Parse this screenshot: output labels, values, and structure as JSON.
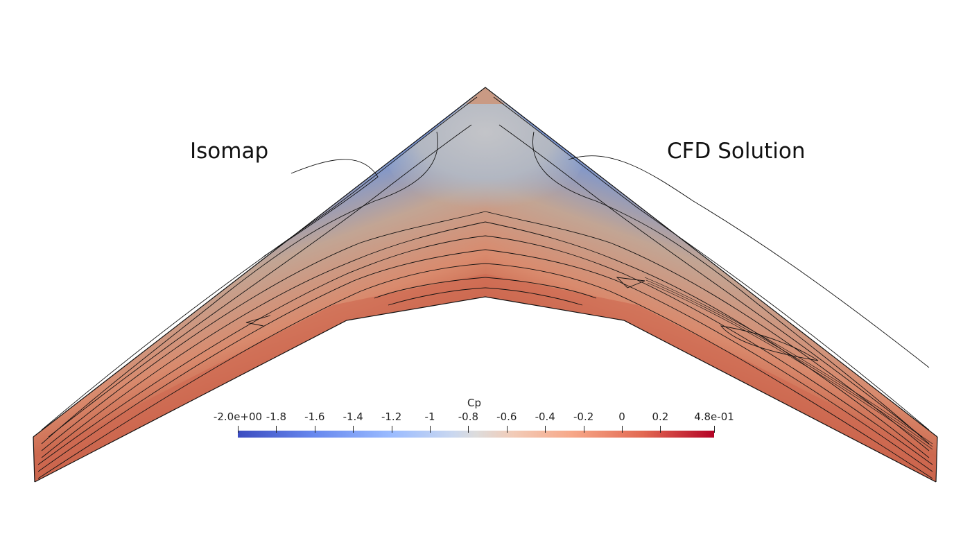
{
  "labels": {
    "left_title": "Isomap",
    "right_title": "CFD Solution"
  },
  "colorbar": {
    "title": "Cp",
    "ticks": [
      "-2.0e+00",
      "-1.8",
      "-1.6",
      "-1.4",
      "-1.2",
      "-1",
      "-0.8",
      "-0.6",
      "-0.4",
      "-0.2",
      "0",
      "0.2",
      "4.8e-01"
    ],
    "min": -2.0,
    "max": 0.48,
    "colors": {
      "low": "#3b4cc0",
      "mid": "#dddcdc",
      "high": "#b40426"
    }
  }
}
